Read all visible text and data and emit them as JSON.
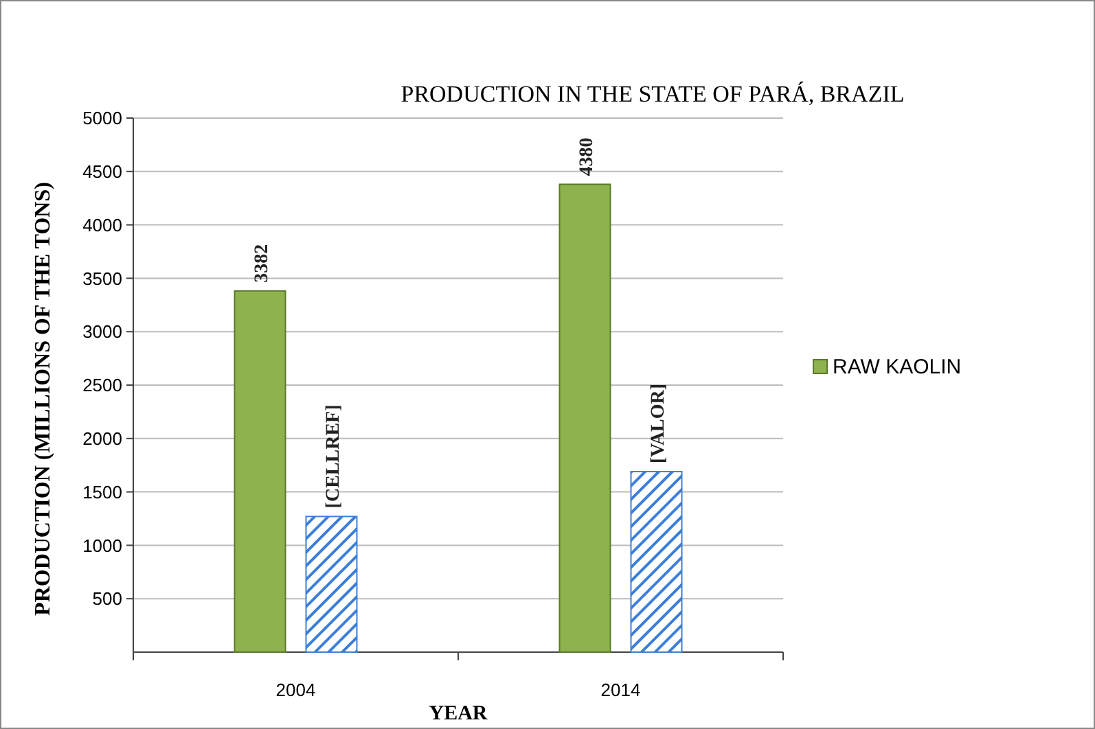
{
  "chart_data": {
    "type": "bar",
    "title": "PRODUCTION IN THE STATE OF PARÁ, BRAZIL",
    "xlabel": "YEAR",
    "ylabel": "PRODUCTION (MILLIONS OF THE TONS)",
    "categories": [
      "2004",
      "2014"
    ],
    "series": [
      {
        "name": "RAW KAOLIN",
        "color": "#8fb24f",
        "values": [
          3382,
          4380
        ],
        "value_labels": [
          "3382",
          "4380"
        ]
      },
      {
        "color": "#3b7fd9",
        "values": [
          1270,
          1690
        ],
        "value_labels": [
          "[CELLREF]",
          "[VALOR]"
        ]
      }
    ],
    "ylim": [
      0,
      5000
    ],
    "yticks": [
      500,
      1000,
      1500,
      2000,
      2500,
      3000,
      3500,
      4000,
      4500,
      5000
    ],
    "grid": "y",
    "legend": "right"
  }
}
